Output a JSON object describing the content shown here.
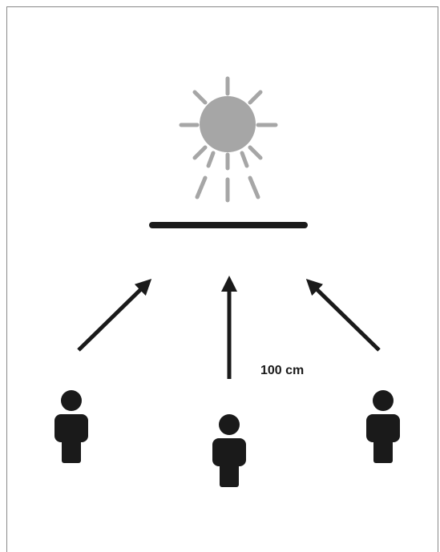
{
  "distance_label": "100 cm"
}
